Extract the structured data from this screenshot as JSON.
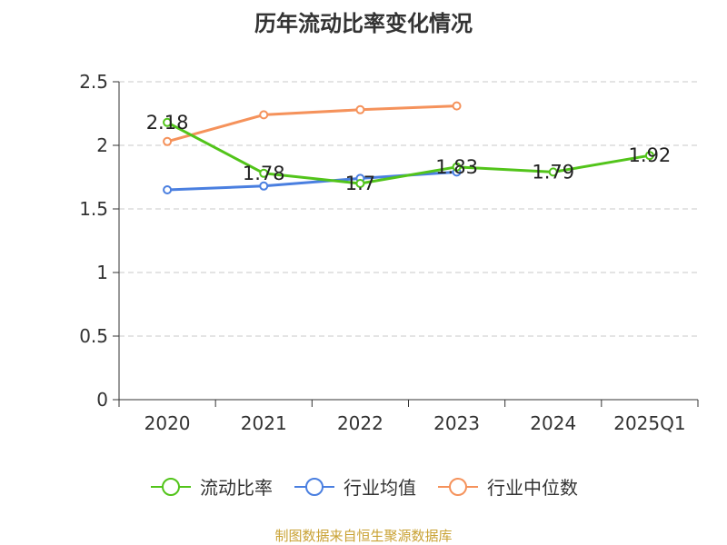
{
  "chart_data": {
    "type": "line",
    "title": "历年流动比率变化情况",
    "categories": [
      "2020",
      "2021",
      "2022",
      "2023",
      "2024",
      "2025Q1"
    ],
    "ylim": [
      0,
      2.5
    ],
    "yticks": [
      0,
      0.5,
      1,
      1.5,
      2,
      2.5
    ],
    "ytick_labels": [
      "0",
      "0.5",
      "1",
      "1.5",
      "2",
      "2.5"
    ],
    "grid": true,
    "legend_position": "bottom",
    "series": [
      {
        "name": "流动比率",
        "color": "#52c41a",
        "values": [
          2.18,
          1.78,
          1.7,
          1.83,
          1.79,
          1.92
        ],
        "labels": [
          "2.18",
          "1.78",
          "1.7",
          "1.83",
          "1.79",
          "1.92"
        ]
      },
      {
        "name": "行业均值",
        "color": "#4a7fe0",
        "values": [
          1.65,
          1.68,
          1.74,
          1.79,
          null,
          null
        ]
      },
      {
        "name": "行业中位数",
        "color": "#f5925b",
        "values": [
          2.03,
          2.24,
          2.28,
          2.31,
          null,
          null
        ]
      }
    ]
  },
  "footer": {
    "source": "制图数据来自恒生聚源数据库"
  }
}
